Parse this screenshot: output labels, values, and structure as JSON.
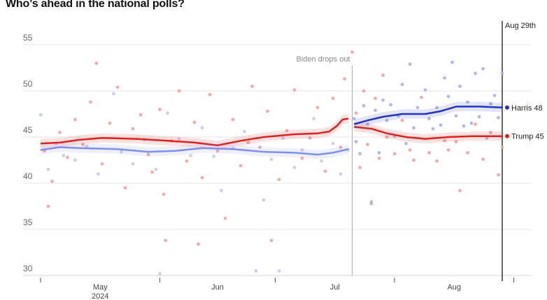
{
  "chart_data": {
    "type": "scatter",
    "title": "Who’s ahead in the national polls?",
    "x_unit": "days since May 1, 2024",
    "xlim": [
      0,
      123
    ],
    "ylim": [
      30,
      55
    ],
    "yticks": [
      30,
      35,
      40,
      45,
      50,
      55
    ],
    "xticks": [
      0,
      31,
      61,
      92,
      123
    ],
    "month_labels": [
      {
        "x": 15.5,
        "label": "May",
        "sublabel": "2024"
      },
      {
        "x": 46,
        "label": "Jun",
        "sublabel": ""
      },
      {
        "x": 76.5,
        "label": "Jul",
        "sublabel": ""
      },
      {
        "x": 107.5,
        "label": "Aug",
        "sublabel": ""
      }
    ],
    "grid": true,
    "annotations": [
      {
        "x": 81,
        "label": "Biden drops out"
      },
      {
        "x": 120,
        "label": "Aug 29th"
      }
    ],
    "series": [
      {
        "name": "Trump",
        "color": "#e0201b",
        "dot_color": "#f2a3a0",
        "end_label": "Trump 45",
        "trend": [
          [
            0,
            44.3
          ],
          [
            5,
            44.4
          ],
          [
            10,
            44.7
          ],
          [
            16,
            44.9
          ],
          [
            25,
            44.8
          ],
          [
            33,
            44.6
          ],
          [
            40,
            44.4
          ],
          [
            46,
            44.1
          ],
          [
            52,
            44.6
          ],
          [
            58,
            45.0
          ],
          [
            66,
            45.3
          ],
          [
            72,
            45.4
          ],
          [
            75,
            45.6
          ],
          [
            77,
            46.2
          ],
          [
            78.5,
            46.9
          ],
          [
            80,
            47.0
          ]
        ],
        "trend2": [
          [
            81.5,
            46.1
          ],
          [
            86,
            45.9
          ],
          [
            90,
            45.4
          ],
          [
            95,
            45.0
          ],
          [
            100,
            44.8
          ],
          [
            106,
            45.0
          ],
          [
            112,
            45.1
          ],
          [
            120,
            45.1
          ]
        ],
        "points": [
          [
            1,
            43.5
          ],
          [
            2,
            37.5
          ],
          [
            3,
            40.2
          ],
          [
            5,
            45.5
          ],
          [
            7,
            42.8
          ],
          [
            9,
            46.9
          ],
          [
            11,
            44.2
          ],
          [
            13,
            48.8
          ],
          [
            14.5,
            53
          ],
          [
            16,
            42.1
          ],
          [
            18,
            46.5
          ],
          [
            20,
            50.4
          ],
          [
            22,
            39.5
          ],
          [
            24,
            45.9
          ],
          [
            26,
            47.4
          ],
          [
            28,
            43.1
          ],
          [
            29,
            41.2
          ],
          [
            31,
            48.0
          ],
          [
            32,
            38.8
          ],
          [
            32.5,
            33.8
          ],
          [
            34,
            44.6
          ],
          [
            36,
            50.0
          ],
          [
            38,
            42.4
          ],
          [
            40,
            46.6
          ],
          [
            41,
            33.4
          ],
          [
            42,
            40.6
          ],
          [
            44,
            49.6
          ],
          [
            46,
            43.5
          ],
          [
            48,
            36.2
          ],
          [
            50,
            46.9
          ],
          [
            52,
            41.9
          ],
          [
            54,
            44.4
          ],
          [
            55,
            50.5
          ],
          [
            57,
            43.9
          ],
          [
            59,
            47.8
          ],
          [
            60,
            33.8
          ],
          [
            62,
            40.4
          ],
          [
            64,
            45.7
          ],
          [
            66,
            50.1
          ],
          [
            68,
            42.7
          ],
          [
            70,
            44.9
          ],
          [
            72,
            48.2
          ],
          [
            74,
            41.3
          ],
          [
            76,
            49.2
          ],
          [
            78,
            43.9
          ],
          [
            79,
            51.3
          ],
          [
            81,
            54.2
          ],
          [
            82,
            47.6
          ],
          [
            83,
            41.7
          ],
          [
            84,
            50.0
          ],
          [
            85,
            44.2
          ],
          [
            86,
            38.0
          ],
          [
            87,
            49.2
          ],
          [
            88,
            42.7
          ],
          [
            89,
            51.7
          ],
          [
            90,
            45.0
          ],
          [
            92,
            43.2
          ],
          [
            94,
            46.8
          ],
          [
            96,
            43.6
          ],
          [
            97,
            42.5
          ],
          [
            99,
            49.3
          ],
          [
            101,
            43.3
          ],
          [
            103,
            42.4
          ],
          [
            105,
            44.6
          ],
          [
            106,
            43.6
          ],
          [
            108,
            44.5
          ],
          [
            109,
            39.2
          ],
          [
            111,
            43.3
          ],
          [
            113,
            46.4
          ],
          [
            115,
            42.6
          ],
          [
            117,
            45.5
          ],
          [
            119,
            40.9
          ],
          [
            120,
            43.9
          ]
        ]
      },
      {
        "name": "Biden",
        "color": "#7f8ff0",
        "dot_color": "#c4cbf3",
        "end_label": "",
        "trend": [
          [
            0,
            43.6
          ],
          [
            5,
            43.9
          ],
          [
            10,
            43.8
          ],
          [
            20,
            43.7
          ],
          [
            28,
            43.4
          ],
          [
            35,
            43.5
          ],
          [
            42,
            43.8
          ],
          [
            50,
            43.7
          ],
          [
            58,
            43.4
          ],
          [
            66,
            43.3
          ],
          [
            72,
            43.1
          ],
          [
            76,
            43.3
          ],
          [
            80,
            43.7
          ]
        ],
        "points": [
          [
            0,
            47.4
          ],
          [
            2,
            41.5
          ],
          [
            4,
            44.3
          ],
          [
            6,
            43.0
          ],
          [
            9,
            42.5
          ],
          [
            12,
            44.0
          ],
          [
            15,
            41.0
          ],
          [
            19,
            49.7
          ],
          [
            21,
            43.4
          ],
          [
            24,
            42.1
          ],
          [
            27,
            44.7
          ],
          [
            30,
            41.5
          ],
          [
            31,
            30.2
          ],
          [
            33,
            47.6
          ],
          [
            36,
            44.8
          ],
          [
            39,
            43.0
          ],
          [
            42,
            46.0
          ],
          [
            45,
            42.9
          ],
          [
            47,
            39.2
          ],
          [
            50,
            43.8
          ],
          [
            53,
            45.6
          ],
          [
            56,
            30.5
          ],
          [
            58,
            38.2
          ],
          [
            60,
            42.6
          ],
          [
            62,
            30.5
          ],
          [
            63,
            44.9
          ],
          [
            66,
            41.7
          ],
          [
            68,
            43.6
          ],
          [
            71,
            47.0
          ],
          [
            73,
            42.4
          ],
          [
            76,
            44.3
          ],
          [
            78,
            41.0
          ],
          [
            80,
            43.6
          ]
        ]
      },
      {
        "name": "Harris",
        "color": "#2233c6",
        "dot_color": "#a9b1ea",
        "end_label": "Harris 48",
        "trend": [
          [
            81.5,
            46.4
          ],
          [
            85,
            46.8
          ],
          [
            89,
            47.2
          ],
          [
            94,
            47.5
          ],
          [
            100,
            47.5
          ],
          [
            104,
            47.8
          ],
          [
            108,
            48.3
          ],
          [
            114,
            48.3
          ],
          [
            120,
            48.2
          ]
        ],
        "points": [
          [
            81.5,
            47.0
          ],
          [
            82,
            44.5
          ],
          [
            83,
            43.2
          ],
          [
            84,
            48.4
          ],
          [
            85,
            46.4
          ],
          [
            86,
            37.8
          ],
          [
            87,
            47.9
          ],
          [
            88,
            43.3
          ],
          [
            89,
            49.0
          ],
          [
            90,
            46.8
          ],
          [
            91,
            48.5
          ],
          [
            92,
            45.1
          ],
          [
            93,
            47.3
          ],
          [
            94,
            50.7
          ],
          [
            95,
            44.3
          ],
          [
            96,
            52.9
          ],
          [
            97,
            46.0
          ],
          [
            98,
            48.2
          ],
          [
            100,
            50.1
          ],
          [
            101,
            47.0
          ],
          [
            102,
            45.9
          ],
          [
            103,
            48.2
          ],
          [
            104,
            46.3
          ],
          [
            105,
            51.4
          ],
          [
            106,
            49.4
          ],
          [
            107,
            53.1
          ],
          [
            108,
            47.3
          ],
          [
            109,
            50.5
          ],
          [
            110,
            46.2
          ],
          [
            111,
            48.8
          ],
          [
            112,
            46.5
          ],
          [
            113,
            51.9
          ],
          [
            114,
            47.2
          ],
          [
            115,
            52.4
          ],
          [
            116,
            44.9
          ],
          [
            117,
            48.6
          ],
          [
            118,
            49.5
          ],
          [
            119,
            47.1
          ],
          [
            120,
            51.9
          ]
        ]
      }
    ]
  }
}
